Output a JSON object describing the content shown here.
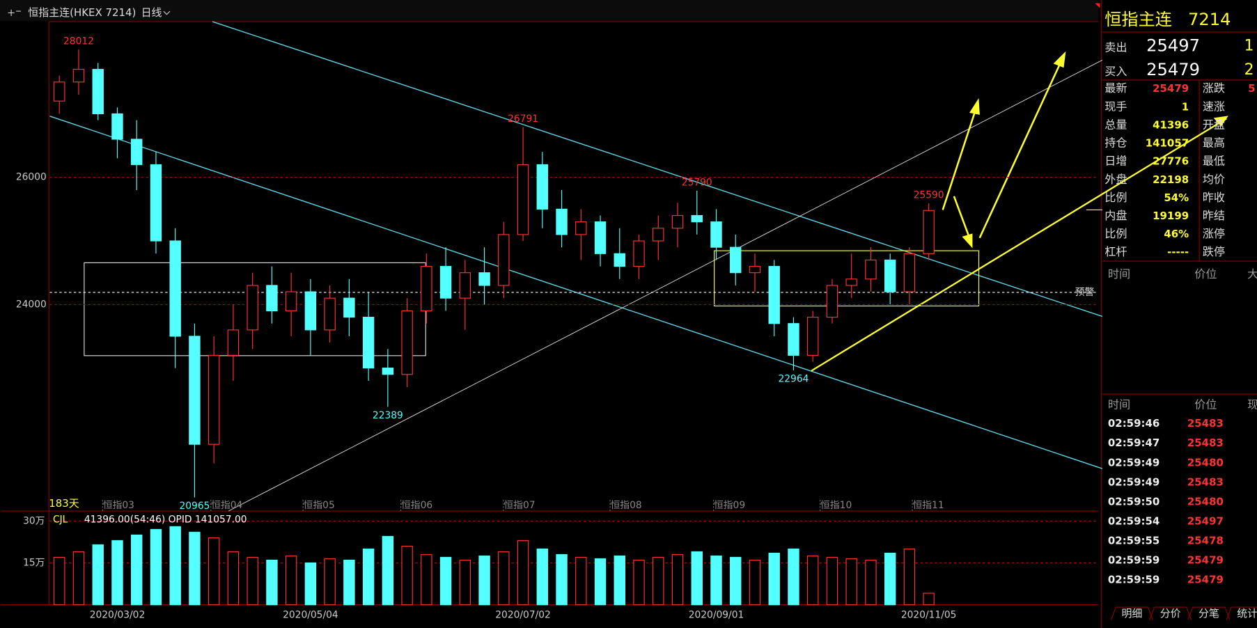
{
  "header": {
    "title": "恒指主连(HKEX 7214)",
    "period": "日线"
  },
  "chart_data": {
    "type": "candlestick",
    "categories": [
      null,
      null,
      null,
      "2020/03/02",
      null,
      null,
      null,
      null,
      null,
      null,
      null,
      null,
      null,
      "2020/05/04",
      null,
      null,
      null,
      null,
      null,
      null,
      null,
      null,
      null,
      null,
      "2020/07/02",
      null,
      null,
      null,
      null,
      null,
      null,
      null,
      null,
      null,
      "2020/09/01",
      null,
      null,
      null,
      null,
      null,
      null,
      null,
      null,
      null,
      null,
      "2020/11/05"
    ],
    "open": [
      27200,
      27500,
      27700,
      27000,
      26600,
      26200,
      25000,
      23500,
      21800,
      23200,
      23600,
      24300,
      23900,
      24200,
      23600,
      24100,
      23800,
      23000,
      22900,
      23900,
      24600,
      24100,
      24500,
      24300,
      25100,
      26200,
      25500,
      25100,
      25300,
      24800,
      24600,
      25000,
      25200,
      25400,
      25300,
      24900,
      24500,
      24600,
      23700,
      23200,
      23800,
      24300,
      24400,
      24700,
      24200,
      24800
    ],
    "high": [
      27600,
      28012,
      27800,
      27100,
      26900,
      26400,
      25200,
      23700,
      23500,
      24000,
      24500,
      24600,
      24500,
      24400,
      24300,
      24400,
      24200,
      23300,
      24100,
      24800,
      24900,
      24700,
      24900,
      25300,
      26791,
      26400,
      25800,
      25500,
      25400,
      25200,
      25100,
      25400,
      25600,
      25790,
      25500,
      25100,
      24800,
      24700,
      23800,
      23900,
      24400,
      24800,
      24900,
      24800,
      24900,
      25590
    ],
    "low": [
      27000,
      27300,
      26900,
      26300,
      25800,
      24800,
      23000,
      20965,
      21500,
      22800,
      23300,
      23700,
      23500,
      23200,
      23400,
      23500,
      22800,
      22389,
      22700,
      23700,
      23900,
      23600,
      24000,
      24100,
      25000,
      25200,
      24900,
      24700,
      24600,
      24400,
      24400,
      24700,
      24900,
      25100,
      24700,
      24300,
      24200,
      23500,
      22964,
      23100,
      23700,
      24100,
      24200,
      24000,
      24000,
      24700
    ],
    "close": [
      27500,
      27700,
      27000,
      26600,
      26200,
      25000,
      23500,
      21800,
      23200,
      23600,
      24300,
      23900,
      24200,
      23600,
      24100,
      23800,
      23000,
      22900,
      23900,
      24600,
      24100,
      24500,
      24300,
      25100,
      26200,
      25500,
      25100,
      25300,
      24800,
      24600,
      25000,
      25200,
      25400,
      25300,
      24900,
      24500,
      24600,
      23700,
      23200,
      23800,
      24300,
      24400,
      24700,
      24200,
      24800,
      25479
    ],
    "up_color": "#ff3232",
    "down_color": "#54ffff",
    "ylim": [
      20750,
      28450
    ],
    "yticks": [
      24000,
      26000
    ],
    "grid": true,
    "annotations": [
      {
        "index": 1,
        "value": 28012,
        "pos": "high"
      },
      {
        "index": 24,
        "value": 26791,
        "pos": "high"
      },
      {
        "index": 33,
        "value": 25790,
        "pos": "high"
      },
      {
        "index": 45,
        "value": 25590,
        "pos": "high"
      },
      {
        "index": 38,
        "value": 22964,
        "pos": "low"
      },
      {
        "index": 17,
        "value": 22389,
        "pos": "low"
      },
      {
        "index": 7,
        "value": 20965,
        "pos": "low"
      }
    ],
    "month_labels": [
      "恒指03",
      "恒指04",
      "恒指05",
      "恒指06",
      "恒指07",
      "恒指08",
      "恒指09",
      "恒指10",
      "恒指11"
    ],
    "days_label": "183天",
    "alert_label": "预警"
  },
  "volume_data": {
    "type": "bar",
    "indicator": "CJL",
    "info": "41396.00(54:46)  OPID 141057.00",
    "values": [
      170000,
      190000,
      215000,
      230000,
      250000,
      270000,
      280000,
      260000,
      240000,
      190000,
      170000,
      160000,
      175000,
      150000,
      165000,
      160000,
      200000,
      245000,
      210000,
      180000,
      170000,
      160000,
      175000,
      190000,
      230000,
      200000,
      180000,
      170000,
      165000,
      175000,
      160000,
      170000,
      180000,
      190000,
      175000,
      170000,
      160000,
      185000,
      200000,
      175000,
      170000,
      165000,
      160000,
      185000,
      200000,
      41396
    ],
    "ylim": [
      0,
      330000
    ],
    "yticks": [
      {
        "value": 300000,
        "label": "30万"
      },
      {
        "value": 150000,
        "label": "15万"
      }
    ]
  },
  "quote": {
    "name": "恒指主连",
    "code": "7214",
    "ask_label": "卖出",
    "ask": 25497,
    "ask_qty": 1,
    "bid_label": "买入",
    "bid": 25479,
    "bid_qty": 2,
    "rows": [
      [
        "最新",
        "25479",
        "涨跌",
        "5"
      ],
      [
        "现手",
        "1",
        "速涨",
        ""
      ],
      [
        "总量",
        "41396",
        "开盘",
        ""
      ],
      [
        "持仓",
        "141057",
        "最高",
        ""
      ],
      [
        "日增",
        "27776",
        "最低",
        ""
      ],
      [
        "外盘",
        "22198",
        "均价",
        ""
      ],
      [
        "比例",
        "54%",
        "昨收",
        ""
      ],
      [
        "内盘",
        "19199",
        "昨结",
        ""
      ],
      [
        "比例",
        "46%",
        "涨停",
        ""
      ],
      [
        "杠杆",
        "-----",
        "跌停",
        ""
      ]
    ]
  },
  "big_orders": {
    "headers": [
      "时间",
      "价位",
      "大"
    ]
  },
  "ticks": {
    "headers": [
      "时间",
      "价位",
      "现"
    ],
    "rows": [
      [
        "02:59:46",
        25483
      ],
      [
        "02:59:47",
        25483
      ],
      [
        "02:59:49",
        25480
      ],
      [
        "02:59:49",
        25483
      ],
      [
        "02:59:50",
        25480
      ],
      [
        "02:59:54",
        25497
      ],
      [
        "02:59:55",
        25478
      ],
      [
        "02:59:59",
        25479
      ],
      [
        "02:59:59",
        25479
      ]
    ]
  },
  "tabs": [
    "明细",
    "分价",
    "分笔",
    "统计"
  ]
}
